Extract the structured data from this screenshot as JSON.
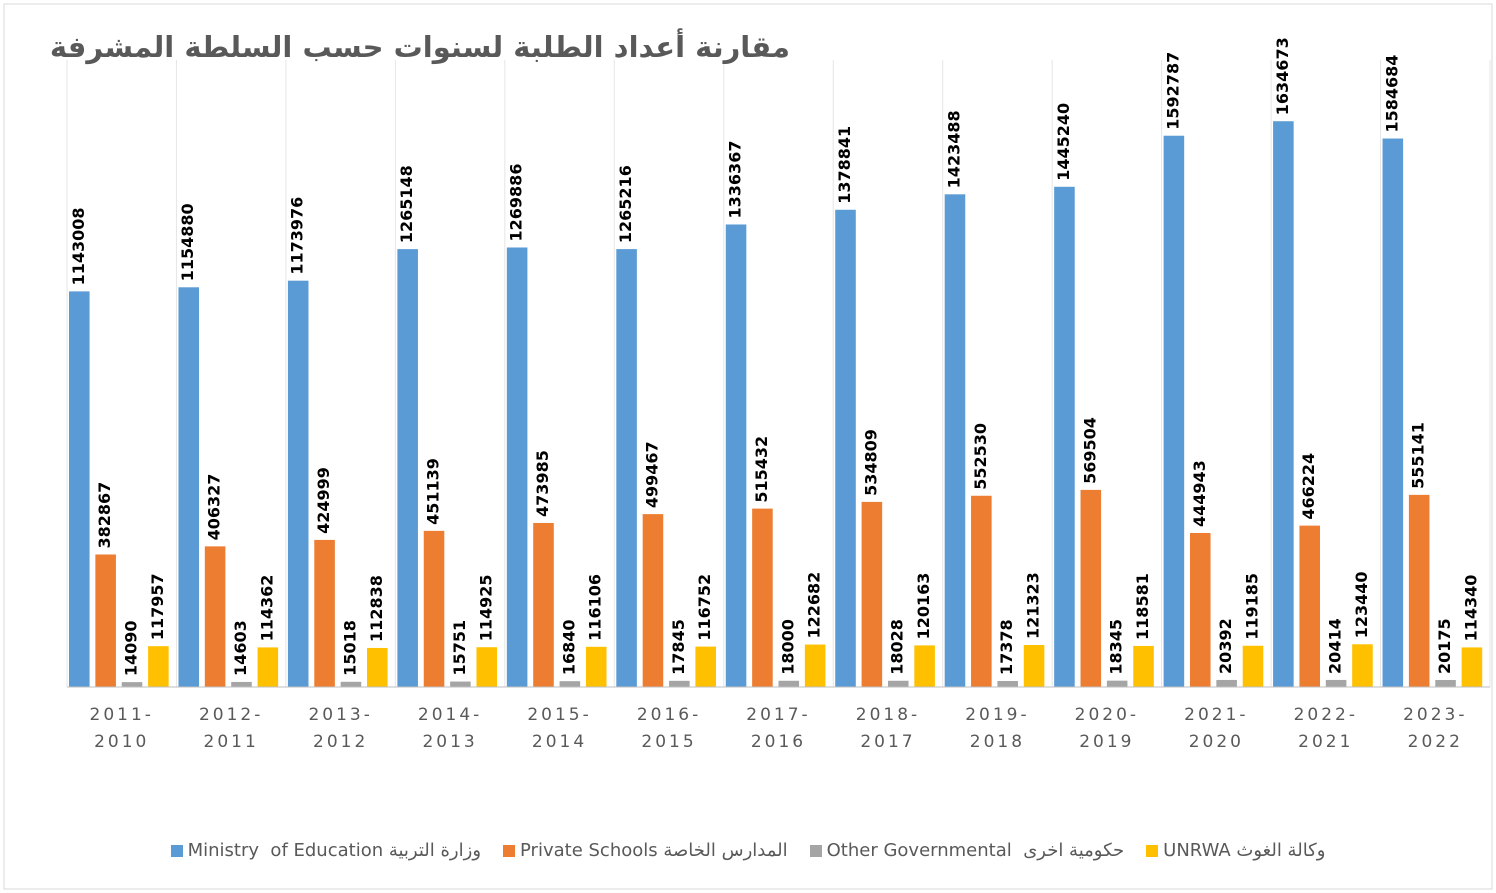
{
  "chart_data": {
    "type": "bar",
    "title": "مقارنة أعداد الطلبة لسنوات حسب السلطة المشرفة",
    "categories": [
      "2011-2010",
      "2012-2011",
      "2013-2012",
      "2014-2013",
      "2015-2014",
      "2016-2015",
      "2017-2016",
      "2018-2017",
      "2019-2018",
      "2020-2019",
      "2021-2020",
      "2022-2021",
      "2023-2022"
    ],
    "series": [
      {
        "name": "Ministry  of Education وزارة التربية",
        "color": "#5b9bd5",
        "values": [
          1143008,
          1154880,
          1173976,
          1265148,
          1269886,
          1265216,
          1336367,
          1378841,
          1423488,
          1445240,
          1592787,
          1634673,
          1584684
        ]
      },
      {
        "name": "Private Schools المدارس الخاصة",
        "color": "#ed7d31",
        "values": [
          382867,
          406327,
          424999,
          451139,
          473985,
          499467,
          515432,
          534809,
          552530,
          569504,
          444943,
          466224,
          555141
        ]
      },
      {
        "name": "Other Governmental  حكومية اخرى",
        "color": "#a5a5a5",
        "values": [
          14090,
          14603,
          15018,
          15751,
          16840,
          17845,
          18000,
          18028,
          17378,
          18345,
          20392,
          20414,
          20175
        ]
      },
      {
        "name": "UNRWA وكالة الغوث",
        "color": "#ffc000",
        "values": [
          117957,
          114362,
          112838,
          114925,
          116106,
          116752,
          122682,
          120163,
          121323,
          118581,
          119185,
          123440,
          114340
        ]
      }
    ],
    "ylim": [
      0,
      1800000
    ]
  }
}
